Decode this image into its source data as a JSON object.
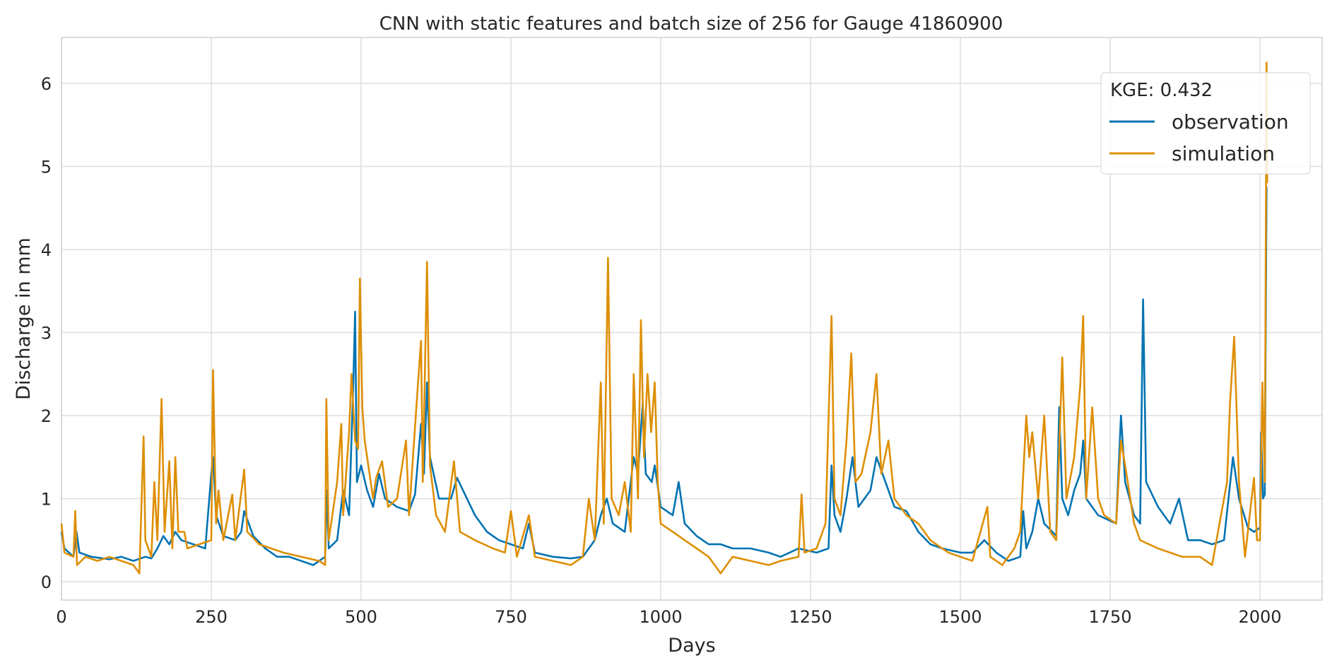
{
  "chart_data": {
    "type": "line",
    "title": "CNN with static features and batch size of 256 for Gauge 41860900",
    "xlabel": "Days",
    "ylabel": "Discharge in mm",
    "xlim": [
      0,
      2110
    ],
    "ylim": [
      -0.2,
      6.55
    ],
    "xticks": [
      0,
      250,
      500,
      750,
      1000,
      1250,
      1500,
      1750,
      2000
    ],
    "yticks": [
      0,
      1,
      2,
      3,
      4,
      5,
      6
    ],
    "grid": true,
    "legend": {
      "title": "KGE: 0.432",
      "placement": "top-right"
    },
    "colors": {
      "observation": "#0173b2",
      "simulation": "#de8f05"
    },
    "series": [
      {
        "name": "observation",
        "points": [
          [
            0,
            0.6
          ],
          [
            5,
            0.4
          ],
          [
            20,
            0.3
          ],
          [
            25,
            0.6
          ],
          [
            30,
            0.35
          ],
          [
            50,
            0.3
          ],
          [
            80,
            0.27
          ],
          [
            100,
            0.3
          ],
          [
            120,
            0.25
          ],
          [
            140,
            0.3
          ],
          [
            150,
            0.28
          ],
          [
            160,
            0.4
          ],
          [
            170,
            0.55
          ],
          [
            180,
            0.45
          ],
          [
            190,
            0.6
          ],
          [
            200,
            0.5
          ],
          [
            220,
            0.45
          ],
          [
            240,
            0.4
          ],
          [
            250,
            1.3
          ],
          [
            253,
            1.5
          ],
          [
            258,
            0.8
          ],
          [
            270,
            0.55
          ],
          [
            290,
            0.5
          ],
          [
            300,
            0.6
          ],
          [
            305,
            0.85
          ],
          [
            320,
            0.55
          ],
          [
            340,
            0.4
          ],
          [
            360,
            0.3
          ],
          [
            380,
            0.3
          ],
          [
            400,
            0.25
          ],
          [
            420,
            0.2
          ],
          [
            440,
            0.3
          ],
          [
            443,
            1.1
          ],
          [
            446,
            0.4
          ],
          [
            460,
            0.5
          ],
          [
            470,
            1.1
          ],
          [
            480,
            0.8
          ],
          [
            487,
            2.4
          ],
          [
            490,
            3.25
          ],
          [
            493,
            1.2
          ],
          [
            500,
            1.4
          ],
          [
            510,
            1.1
          ],
          [
            520,
            0.9
          ],
          [
            530,
            1.3
          ],
          [
            540,
            1.0
          ],
          [
            560,
            0.9
          ],
          [
            580,
            0.85
          ],
          [
            590,
            1.05
          ],
          [
            600,
            1.9
          ],
          [
            605,
            1.3
          ],
          [
            610,
            2.4
          ],
          [
            615,
            1.5
          ],
          [
            630,
            1.0
          ],
          [
            650,
            1.0
          ],
          [
            660,
            1.25
          ],
          [
            670,
            1.1
          ],
          [
            690,
            0.8
          ],
          [
            710,
            0.6
          ],
          [
            730,
            0.5
          ],
          [
            750,
            0.45
          ],
          [
            770,
            0.4
          ],
          [
            780,
            0.7
          ],
          [
            790,
            0.35
          ],
          [
            820,
            0.3
          ],
          [
            850,
            0.28
          ],
          [
            870,
            0.3
          ],
          [
            890,
            0.5
          ],
          [
            900,
            0.8
          ],
          [
            910,
            1.0
          ],
          [
            920,
            0.7
          ],
          [
            940,
            0.6
          ],
          [
            955,
            1.5
          ],
          [
            962,
            1.3
          ],
          [
            970,
            2.15
          ],
          [
            975,
            1.3
          ],
          [
            985,
            1.2
          ],
          [
            990,
            1.4
          ],
          [
            1000,
            0.9
          ],
          [
            1020,
            0.8
          ],
          [
            1030,
            1.2
          ],
          [
            1040,
            0.7
          ],
          [
            1060,
            0.55
          ],
          [
            1080,
            0.45
          ],
          [
            1100,
            0.45
          ],
          [
            1120,
            0.4
          ],
          [
            1150,
            0.4
          ],
          [
            1180,
            0.35
          ],
          [
            1200,
            0.3
          ],
          [
            1230,
            0.4
          ],
          [
            1260,
            0.35
          ],
          [
            1280,
            0.4
          ],
          [
            1285,
            1.4
          ],
          [
            1290,
            0.8
          ],
          [
            1300,
            0.6
          ],
          [
            1310,
            1.0
          ],
          [
            1320,
            1.5
          ],
          [
            1330,
            0.9
          ],
          [
            1350,
            1.1
          ],
          [
            1360,
            1.5
          ],
          [
            1375,
            1.2
          ],
          [
            1390,
            0.9
          ],
          [
            1410,
            0.85
          ],
          [
            1430,
            0.6
          ],
          [
            1450,
            0.45
          ],
          [
            1470,
            0.4
          ],
          [
            1500,
            0.35
          ],
          [
            1520,
            0.35
          ],
          [
            1540,
            0.5
          ],
          [
            1560,
            0.35
          ],
          [
            1580,
            0.25
          ],
          [
            1600,
            0.3
          ],
          [
            1605,
            0.85
          ],
          [
            1610,
            0.4
          ],
          [
            1620,
            0.6
          ],
          [
            1630,
            1.0
          ],
          [
            1640,
            0.7
          ],
          [
            1660,
            0.55
          ],
          [
            1665,
            2.1
          ],
          [
            1670,
            1.0
          ],
          [
            1680,
            0.8
          ],
          [
            1690,
            1.1
          ],
          [
            1700,
            1.3
          ],
          [
            1705,
            1.7
          ],
          [
            1710,
            1.0
          ],
          [
            1730,
            0.8
          ],
          [
            1760,
            0.7
          ],
          [
            1768,
            2.0
          ],
          [
            1775,
            1.2
          ],
          [
            1790,
            0.8
          ],
          [
            1800,
            0.7
          ],
          [
            1805,
            3.4
          ],
          [
            1810,
            1.2
          ],
          [
            1830,
            0.9
          ],
          [
            1850,
            0.7
          ],
          [
            1865,
            1.0
          ],
          [
            1880,
            0.5
          ],
          [
            1900,
            0.5
          ],
          [
            1920,
            0.45
          ],
          [
            1940,
            0.5
          ],
          [
            1955,
            1.5
          ],
          [
            1965,
            1.0
          ],
          [
            1980,
            0.65
          ],
          [
            1990,
            0.6
          ],
          [
            2000,
            0.65
          ],
          [
            2002,
            1.8
          ],
          [
            2005,
            1.0
          ],
          [
            2008,
            1.05
          ],
          [
            2011,
            4.75
          ],
          [
            2012,
            4.75
          ]
        ]
      },
      {
        "name": "simulation",
        "points": [
          [
            0,
            0.7
          ],
          [
            5,
            0.35
          ],
          [
            20,
            0.3
          ],
          [
            23,
            0.85
          ],
          [
            26,
            0.2
          ],
          [
            40,
            0.3
          ],
          [
            60,
            0.25
          ],
          [
            80,
            0.3
          ],
          [
            100,
            0.25
          ],
          [
            120,
            0.2
          ],
          [
            130,
            0.1
          ],
          [
            137,
            1.75
          ],
          [
            140,
            0.5
          ],
          [
            150,
            0.3
          ],
          [
            155,
            1.2
          ],
          [
            160,
            0.5
          ],
          [
            167,
            2.2
          ],
          [
            172,
            0.6
          ],
          [
            180,
            1.45
          ],
          [
            185,
            0.4
          ],
          [
            190,
            1.5
          ],
          [
            195,
            0.6
          ],
          [
            205,
            0.6
          ],
          [
            210,
            0.4
          ],
          [
            230,
            0.45
          ],
          [
            250,
            0.5
          ],
          [
            253,
            2.55
          ],
          [
            258,
            0.7
          ],
          [
            262,
            1.1
          ],
          [
            270,
            0.5
          ],
          [
            285,
            1.05
          ],
          [
            290,
            0.5
          ],
          [
            305,
            1.35
          ],
          [
            310,
            0.6
          ],
          [
            330,
            0.45
          ],
          [
            350,
            0.4
          ],
          [
            370,
            0.35
          ],
          [
            400,
            0.3
          ],
          [
            430,
            0.25
          ],
          [
            440,
            0.2
          ],
          [
            442,
            2.2
          ],
          [
            446,
            0.5
          ],
          [
            460,
            1.2
          ],
          [
            467,
            1.9
          ],
          [
            470,
            0.8
          ],
          [
            480,
            1.8
          ],
          [
            484,
            2.5
          ],
          [
            490,
            1.7
          ],
          [
            495,
            1.6
          ],
          [
            498,
            3.65
          ],
          [
            502,
            2.1
          ],
          [
            506,
            1.7
          ],
          [
            520,
            1.0
          ],
          [
            525,
            1.25
          ],
          [
            535,
            1.45
          ],
          [
            545,
            0.9
          ],
          [
            560,
            1.0
          ],
          [
            575,
            1.7
          ],
          [
            580,
            0.8
          ],
          [
            595,
            2.4
          ],
          [
            600,
            2.9
          ],
          [
            603,
            1.2
          ],
          [
            610,
            3.85
          ],
          [
            615,
            1.4
          ],
          [
            625,
            0.8
          ],
          [
            640,
            0.6
          ],
          [
            655,
            1.45
          ],
          [
            665,
            0.6
          ],
          [
            690,
            0.5
          ],
          [
            720,
            0.4
          ],
          [
            740,
            0.35
          ],
          [
            750,
            0.85
          ],
          [
            760,
            0.3
          ],
          [
            780,
            0.8
          ],
          [
            790,
            0.3
          ],
          [
            820,
            0.25
          ],
          [
            850,
            0.2
          ],
          [
            870,
            0.3
          ],
          [
            880,
            1.0
          ],
          [
            890,
            0.5
          ],
          [
            900,
            2.4
          ],
          [
            905,
            0.7
          ],
          [
            912,
            3.9
          ],
          [
            918,
            1.0
          ],
          [
            930,
            0.8
          ],
          [
            940,
            1.2
          ],
          [
            950,
            0.6
          ],
          [
            955,
            2.5
          ],
          [
            962,
            1.0
          ],
          [
            967,
            3.15
          ],
          [
            972,
            1.5
          ],
          [
            978,
            2.5
          ],
          [
            984,
            1.8
          ],
          [
            990,
            2.4
          ],
          [
            995,
            1.2
          ],
          [
            1000,
            0.7
          ],
          [
            1020,
            0.6
          ],
          [
            1040,
            0.5
          ],
          [
            1060,
            0.4
          ],
          [
            1080,
            0.3
          ],
          [
            1100,
            0.1
          ],
          [
            1120,
            0.3
          ],
          [
            1150,
            0.25
          ],
          [
            1180,
            0.2
          ],
          [
            1200,
            0.25
          ],
          [
            1230,
            0.3
          ],
          [
            1235,
            1.05
          ],
          [
            1240,
            0.35
          ],
          [
            1260,
            0.4
          ],
          [
            1275,
            0.7
          ],
          [
            1285,
            3.2
          ],
          [
            1290,
            1.0
          ],
          [
            1300,
            0.8
          ],
          [
            1310,
            1.7
          ],
          [
            1318,
            2.75
          ],
          [
            1325,
            1.2
          ],
          [
            1335,
            1.3
          ],
          [
            1350,
            1.8
          ],
          [
            1360,
            2.5
          ],
          [
            1368,
            1.3
          ],
          [
            1380,
            1.7
          ],
          [
            1390,
            1.0
          ],
          [
            1410,
            0.8
          ],
          [
            1430,
            0.7
          ],
          [
            1450,
            0.5
          ],
          [
            1480,
            0.35
          ],
          [
            1500,
            0.3
          ],
          [
            1520,
            0.25
          ],
          [
            1545,
            0.9
          ],
          [
            1550,
            0.3
          ],
          [
            1570,
            0.2
          ],
          [
            1590,
            0.4
          ],
          [
            1600,
            0.6
          ],
          [
            1610,
            2.0
          ],
          [
            1615,
            1.5
          ],
          [
            1620,
            1.8
          ],
          [
            1630,
            1.0
          ],
          [
            1640,
            2.0
          ],
          [
            1650,
            0.6
          ],
          [
            1660,
            0.5
          ],
          [
            1670,
            2.7
          ],
          [
            1677,
            1.0
          ],
          [
            1690,
            1.5
          ],
          [
            1700,
            2.35
          ],
          [
            1705,
            3.2
          ],
          [
            1710,
            1.0
          ],
          [
            1720,
            2.1
          ],
          [
            1730,
            1.0
          ],
          [
            1740,
            0.8
          ],
          [
            1760,
            0.7
          ],
          [
            1768,
            1.7
          ],
          [
            1775,
            1.4
          ],
          [
            1790,
            0.7
          ],
          [
            1800,
            0.5
          ],
          [
            1830,
            0.4
          ],
          [
            1850,
            0.35
          ],
          [
            1870,
            0.3
          ],
          [
            1900,
            0.3
          ],
          [
            1920,
            0.2
          ],
          [
            1930,
            0.6
          ],
          [
            1945,
            1.2
          ],
          [
            1950,
            2.15
          ],
          [
            1957,
            2.95
          ],
          [
            1965,
            1.2
          ],
          [
            1975,
            0.3
          ],
          [
            1990,
            1.25
          ],
          [
            1995,
            0.5
          ],
          [
            2000,
            0.5
          ],
          [
            2004,
            2.4
          ],
          [
            2008,
            1.2
          ],
          [
            2011,
            6.25
          ],
          [
            2012,
            4.8
          ]
        ]
      }
    ]
  }
}
